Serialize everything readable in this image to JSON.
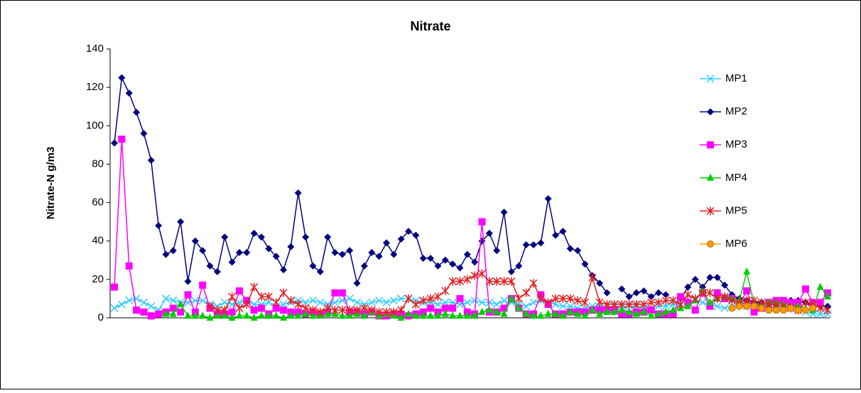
{
  "chart_data": {
    "type": "line",
    "title": "Nitrate",
    "y_label": "Nitrate-N g/m3",
    "ylim": [
      0,
      140
    ],
    "yticks": [
      0,
      20,
      40,
      60,
      80,
      100,
      120,
      140
    ],
    "legend": "right",
    "series": [
      {
        "name": "MP1",
        "color": "#33ccff",
        "marker": "x",
        "values": [
          5,
          7,
          9,
          10,
          8,
          6,
          4,
          10,
          9,
          8,
          8,
          9,
          9,
          7,
          6,
          8,
          7,
          8,
          9,
          7,
          7,
          8,
          6,
          7,
          8,
          9,
          8,
          9,
          8,
          7,
          8,
          9,
          10,
          8,
          7,
          8,
          9,
          8,
          9,
          10,
          10,
          9,
          8,
          8,
          7,
          8,
          8,
          7,
          8,
          9,
          8,
          8,
          7,
          9,
          8,
          7,
          6,
          8,
          9,
          8,
          7,
          6,
          6,
          5,
          5,
          6,
          6,
          6,
          6,
          6,
          6,
          6,
          5,
          5,
          6,
          6,
          7,
          7,
          8,
          9,
          8,
          7,
          6,
          5,
          6,
          7,
          6,
          7,
          6,
          5,
          5,
          6,
          5,
          4,
          3,
          2,
          2,
          2
        ]
      },
      {
        "name": "MP2",
        "color": "#000080",
        "marker": "diamond",
        "values": [
          91,
          125,
          117,
          107,
          96,
          82,
          48,
          33,
          35,
          50,
          19,
          40,
          35,
          27,
          24,
          42,
          29,
          34,
          34,
          44,
          42,
          36,
          32,
          25,
          37,
          65,
          42,
          27,
          24,
          42,
          34,
          33,
          35,
          18,
          27,
          34,
          32,
          39,
          33,
          41,
          45,
          43,
          31,
          31,
          27,
          30,
          28,
          26,
          33,
          29,
          40,
          44,
          35,
          55,
          24,
          27,
          38,
          38,
          39,
          62,
          43,
          45,
          36,
          35,
          28,
          22,
          18,
          13,
          null,
          15,
          11,
          13,
          14,
          11,
          13,
          12,
          null,
          10,
          16,
          20,
          16,
          21,
          21,
          17,
          12,
          10,
          9,
          8,
          8,
          7,
          7,
          8,
          9,
          9,
          8,
          6,
          6,
          6
        ]
      },
      {
        "name": "MP3",
        "color": "#ff00ff",
        "marker": "square",
        "values": [
          16,
          93,
          27,
          4,
          3,
          1,
          2,
          3,
          5,
          3,
          12,
          3,
          17,
          5,
          2,
          2,
          3,
          14,
          9,
          4,
          5,
          2,
          5,
          4,
          3,
          3,
          2,
          3,
          2,
          3,
          13,
          13,
          3,
          3,
          2,
          3,
          1,
          1,
          2,
          2,
          1,
          2,
          3,
          5,
          3,
          5,
          5,
          10,
          3,
          2,
          50,
          3,
          3,
          5,
          10,
          5,
          2,
          2,
          12,
          7,
          2,
          2,
          3,
          3,
          3,
          4,
          4,
          4,
          4,
          2,
          2,
          3,
          3,
          4,
          2,
          2,
          2,
          11,
          8,
          4,
          13,
          6,
          13,
          10,
          10,
          7,
          14,
          3,
          5,
          8,
          9,
          9,
          8,
          8,
          15,
          8,
          8,
          13
        ]
      },
      {
        "name": "MP4",
        "color": "#00cc00",
        "marker": "triangle",
        "values": [
          null,
          null,
          null,
          null,
          null,
          null,
          null,
          2,
          2,
          7,
          1,
          1,
          1,
          0,
          1,
          1,
          0,
          1,
          1,
          0,
          1,
          1,
          1,
          0,
          1,
          1,
          2,
          1,
          1,
          2,
          2,
          1,
          1,
          2,
          1,
          3,
          1,
          2,
          1,
          0,
          2,
          1,
          1,
          1,
          1,
          2,
          1,
          1,
          1,
          1,
          3,
          4,
          3,
          2,
          10,
          5,
          2,
          1,
          1,
          2,
          2,
          1,
          3,
          2,
          1,
          4,
          2,
          3,
          3,
          4,
          3,
          2,
          3,
          1,
          2,
          3,
          4,
          5,
          6,
          9,
          14,
          8,
          10,
          11,
          10,
          9,
          24,
          7,
          7,
          8,
          8,
          7,
          6,
          6,
          5,
          4,
          16,
          11
        ]
      },
      {
        "name": "MP5",
        "color": "#e32020",
        "marker": "star",
        "values": [
          null,
          null,
          null,
          null,
          null,
          null,
          null,
          null,
          null,
          null,
          null,
          null,
          null,
          6,
          4,
          4,
          11,
          5,
          7,
          16,
          11,
          11,
          8,
          13,
          9,
          7,
          5,
          4,
          3,
          5,
          4,
          4,
          4,
          4,
          5,
          4,
          3,
          3,
          3,
          4,
          10,
          7,
          9,
          10,
          11,
          14,
          19,
          19,
          20,
          22,
          23,
          19,
          19,
          19,
          19,
          10,
          13,
          18,
          10,
          8,
          10,
          10,
          10,
          9,
          8,
          21,
          8,
          7,
          7,
          7,
          7,
          7,
          7,
          8,
          8,
          9,
          9,
          7,
          12,
          10,
          13,
          13,
          10,
          11,
          9,
          8,
          9,
          9,
          8,
          7,
          7,
          6,
          5,
          4,
          8,
          7,
          5,
          4
        ]
      },
      {
        "name": "MP6",
        "color": "#ff9900",
        "marker": "circle",
        "values": [
          null,
          null,
          null,
          null,
          null,
          null,
          null,
          null,
          null,
          null,
          null,
          null,
          null,
          null,
          null,
          null,
          null,
          null,
          null,
          null,
          null,
          null,
          null,
          null,
          null,
          null,
          null,
          null,
          null,
          null,
          null,
          null,
          null,
          null,
          null,
          null,
          null,
          null,
          null,
          null,
          null,
          null,
          null,
          null,
          null,
          null,
          null,
          null,
          null,
          null,
          null,
          null,
          null,
          null,
          null,
          null,
          null,
          null,
          null,
          null,
          null,
          null,
          null,
          null,
          null,
          null,
          null,
          null,
          null,
          null,
          null,
          null,
          null,
          null,
          null,
          null,
          null,
          null,
          null,
          null,
          null,
          null,
          null,
          null,
          5,
          6,
          6,
          6,
          5,
          4,
          4,
          4,
          5,
          4,
          4,
          5,
          null,
          null
        ]
      }
    ]
  }
}
